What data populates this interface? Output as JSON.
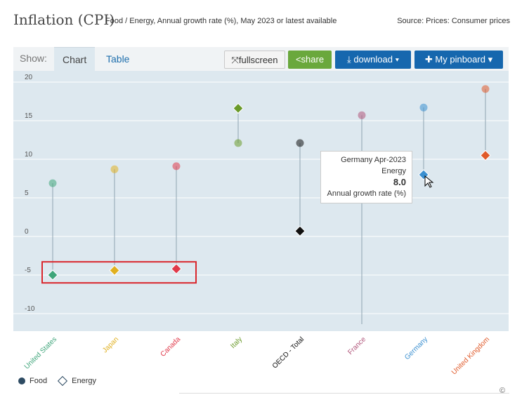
{
  "header": {
    "title": "Inflation (CPI)",
    "subtitle": "Food / Energy, Annual growth rate (%), May 2023 or latest available",
    "source": "Source: Prices: Consumer prices"
  },
  "toolbar": {
    "show_label": "Show:",
    "tab_chart": "Chart",
    "tab_table": "Table",
    "fullscreen_label": "fullscreen",
    "share_label": "share",
    "download_label": "download",
    "pinboard_label": "My pinboard"
  },
  "tooltip": {
    "line1": "Germany Apr-2023",
    "line2": "Energy",
    "value": "8.0",
    "line4": "Annual growth rate (%)"
  },
  "legend": {
    "food": "Food",
    "energy": "Energy"
  },
  "copyright": "©",
  "colors": {
    "plot_bg": "#dde8ef",
    "highlight_box": "#d9262c",
    "button_blue": "#1667ae",
    "button_green": "#6aa83c"
  },
  "icons": {
    "fullscreen": "fullscreen-icon",
    "share": "share-icon",
    "download": "download-icon",
    "pinboard": "pin-icon",
    "dropdown": "chevron-down-icon",
    "cursor": "mouse-cursor-icon"
  },
  "chart_data": {
    "type": "scatter",
    "categories": [
      "United States",
      "Japan",
      "Canada",
      "Italy",
      "OECD - Total",
      "France",
      "Germany",
      "United Kingdom"
    ],
    "category_colors": [
      "#3fa57a",
      "#e0b020",
      "#e0394a",
      "#6a9a2a",
      "#111111",
      "#b0557a",
      "#3a8fd0",
      "#e05a2a"
    ],
    "series": [
      {
        "name": "Food",
        "values": [
          6.9,
          8.7,
          9.1,
          12.1,
          12.1,
          15.7,
          16.7,
          19.1
        ]
      },
      {
        "name": "Energy",
        "values": [
          -5.0,
          -4.4,
          -4.2,
          16.6,
          0.7,
          null,
          8.0,
          10.5
        ]
      }
    ],
    "y_ticks": [
      20,
      15,
      10,
      5,
      0,
      -5,
      -10
    ],
    "ylim": [
      -11,
      21.5
    ],
    "highlighted_series": "Energy",
    "highlighted_categories": [
      "United States",
      "Japan",
      "Canada"
    ],
    "grid": "horizontal",
    "legend_position": "bottom-left"
  }
}
